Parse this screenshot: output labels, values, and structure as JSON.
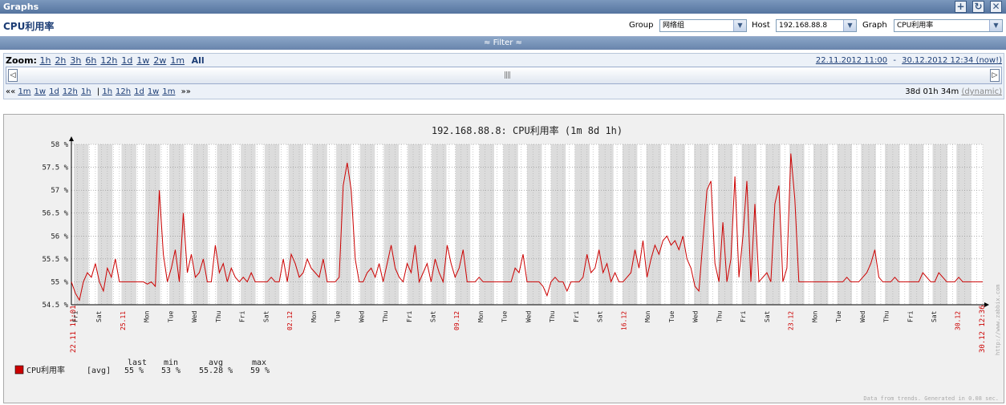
{
  "window": {
    "title": "Graphs"
  },
  "header": {
    "page_title": "CPU利用率"
  },
  "selectors": {
    "group_label": "Group",
    "group_value": "网络组",
    "host_label": "Host",
    "host_value": "192.168.88.8",
    "graph_label": "Graph",
    "graph_value": "CPU利用率"
  },
  "filter": {
    "label": "≈ Filter ≈"
  },
  "zoom": {
    "label": "Zoom:",
    "options": [
      "1h",
      "2h",
      "3h",
      "6h",
      "12h",
      "1d",
      "1w",
      "2w",
      "1m"
    ],
    "all_label": "All",
    "range_from": "22.11.2012 11:00",
    "range_sep": "-",
    "range_to": "30.12.2012 12:34 (now!)"
  },
  "navigation": {
    "back_marker": "««",
    "back": [
      "1m",
      "1w",
      "1d",
      "12h",
      "1h"
    ],
    "sep": "|",
    "forward": [
      "1h",
      "12h",
      "1d",
      "1w",
      "1m"
    ],
    "fwd_marker": "»»",
    "period": "38d 01h 34m",
    "dynamic": "(dynamic)"
  },
  "chart_data": {
    "type": "line",
    "title": "192.168.88.8: CPU利用率 (1m 8d 1h)",
    "ylim": [
      54.5,
      58
    ],
    "y_ticks": [
      "58 %",
      "57.5 %",
      "57 %",
      "56.5 %",
      "56 %",
      "55.5 %",
      "55 %",
      "54.5 %"
    ],
    "x_start_label": "22.11 11:01",
    "x_end_label": "30.12 12:36",
    "day_labels": [
      "Fri",
      "Sat",
      "25.11",
      "Mon",
      "Tue",
      "Wed",
      "Thu",
      "Fri",
      "Sat",
      "02.12",
      "Mon",
      "Tue",
      "Wed",
      "Thu",
      "Fri",
      "Sat",
      "09.12",
      "Mon",
      "Tue",
      "Wed",
      "Thu",
      "Fri",
      "Sat",
      "16.12",
      "Mon",
      "Tue",
      "Wed",
      "Thu",
      "Fri",
      "Sat",
      "23.12",
      "Mon",
      "Tue",
      "Wed",
      "Thu",
      "Fri",
      "Sat",
      "30.12"
    ],
    "date_label_days": [
      2,
      9,
      16,
      23,
      30
    ],
    "series": [
      {
        "name": "CPU利用率",
        "color": "#cc0000",
        "func": "[avg]",
        "last": "55 %",
        "min": "53 %",
        "avg": "55.28 %",
        "max": "59 %",
        "values": [
          55.0,
          54.75,
          54.6,
          55.0,
          55.2,
          55.1,
          55.4,
          55.0,
          54.8,
          55.3,
          55.1,
          55.5,
          55.0,
          55.0,
          55.0,
          55.0,
          55.0,
          55.0,
          55.0,
          54.95,
          55.0,
          54.9,
          57.0,
          55.6,
          55.0,
          55.3,
          55.7,
          55.0,
          56.5,
          55.2,
          55.6,
          55.1,
          55.2,
          55.5,
          55.0,
          55.0,
          55.8,
          55.2,
          55.4,
          55.0,
          55.3,
          55.1,
          55.0,
          55.1,
          55.0,
          55.2,
          55.0,
          55.0,
          55.0,
          55.0,
          55.1,
          55.0,
          55.0,
          55.5,
          55.0,
          55.6,
          55.4,
          55.1,
          55.2,
          55.5,
          55.3,
          55.2,
          55.1,
          55.5,
          55.0,
          55.0,
          55.0,
          55.1,
          57.1,
          57.6,
          57.0,
          55.5,
          55.0,
          55.0,
          55.2,
          55.3,
          55.1,
          55.4,
          55.0,
          55.4,
          55.8,
          55.3,
          55.1,
          55.0,
          55.4,
          55.2,
          55.8,
          55.0,
          55.2,
          55.4,
          55.0,
          55.5,
          55.2,
          55.0,
          55.8,
          55.4,
          55.1,
          55.3,
          55.7,
          55.0,
          55.0,
          55.0,
          55.1,
          55.0,
          55.0,
          55.0,
          55.0,
          55.0,
          55.0,
          55.0,
          55.0,
          55.3,
          55.2,
          55.6,
          55.0,
          55.0,
          55.0,
          55.0,
          54.9,
          54.7,
          55.0,
          55.1,
          55.0,
          55.0,
          54.8,
          55.0,
          55.0,
          55.0,
          55.1,
          55.6,
          55.2,
          55.3,
          55.7,
          55.2,
          55.4,
          55.0,
          55.2,
          55.0,
          55.0,
          55.1,
          55.2,
          55.7,
          55.3,
          55.9,
          55.1,
          55.5,
          55.8,
          55.6,
          55.9,
          56.0,
          55.8,
          55.9,
          55.7,
          56.0,
          55.5,
          55.3,
          54.9,
          54.8,
          55.9,
          57.0,
          57.2,
          55.4,
          55.0,
          56.3,
          55.0,
          55.5,
          57.3,
          55.1,
          56.0,
          57.2,
          55.0,
          56.7,
          55.0,
          55.1,
          55.2,
          55.0,
          56.7,
          57.1,
          55.0,
          55.3,
          57.8,
          56.8,
          55.0,
          55.0,
          55.0,
          55.0,
          55.0,
          55.0,
          55.0,
          55.0,
          55.0,
          55.0,
          55.0,
          55.0,
          55.1,
          55.0,
          55.0,
          55.0,
          55.1,
          55.2,
          55.4,
          55.7,
          55.1,
          55.0,
          55.0,
          55.0,
          55.1,
          55.0,
          55.0,
          55.0,
          55.0,
          55.0,
          55.0,
          55.2,
          55.1,
          55.0,
          55.0,
          55.2,
          55.1,
          55.0,
          55.0,
          55.0,
          55.1,
          55.0,
          55.0,
          55.0,
          55.0,
          55.0,
          55.0
        ]
      }
    ],
    "legend": {
      "header_last": "last",
      "header_min": "min",
      "header_avg": "avg",
      "header_max": "max"
    },
    "footer": "Data from trends. Generated in 0.08 sec.",
    "watermark": "http://www.zabbix.com"
  }
}
